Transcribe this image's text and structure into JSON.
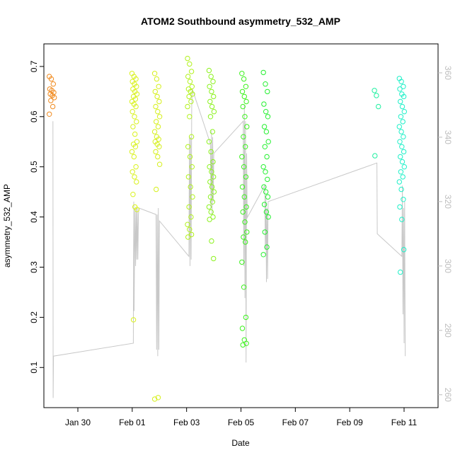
{
  "chart_data": {
    "type": "scatter",
    "title": "ATOM2 Southbound asymmetry_532_AMP",
    "xlabel": "Date",
    "ylabel": "asymmetry_532_AMP",
    "xlim": [
      "2020-01-28T18:00",
      "2020-02-12T06:00"
    ],
    "ylim": [
      0.02,
      0.745
    ],
    "y2lim": [
      256,
      369
    ],
    "x_ticks": [
      {
        "date": "2020-01-30",
        "label": "Jan 30"
      },
      {
        "date": "2020-02-01",
        "label": "Feb 01"
      },
      {
        "date": "2020-02-03",
        "label": "Feb 03"
      },
      {
        "date": "2020-02-05",
        "label": "Feb 05"
      },
      {
        "date": "2020-02-07",
        "label": "Feb 07"
      },
      {
        "date": "2020-02-09",
        "label": "Feb 09"
      },
      {
        "date": "2020-02-11",
        "label": "Feb 11"
      }
    ],
    "y_ticks": [
      0.1,
      0.2,
      0.3,
      0.4,
      0.5,
      0.6,
      0.7
    ],
    "y2_ticks": [
      260,
      280,
      300,
      320,
      340,
      360
    ],
    "grid": false,
    "series": [
      {
        "type": "scatter",
        "marker": "open-circle",
        "color_by_time": true,
        "groups": [
          {
            "center": "2020-01-29T01:00",
            "color": "#f08a1e",
            "values": [
              0.68,
              0.675,
              0.665,
              0.655,
              0.652,
              0.648,
              0.645,
              0.642,
              0.638,
              0.632,
              0.62,
              0.605
            ]
          },
          {
            "center": "2020-02-01T02:00",
            "color": "#d9f21e",
            "values": [
              0.686,
              0.68,
              0.675,
              0.67,
              0.665,
              0.66,
              0.655,
              0.65,
              0.645,
              0.64,
              0.635,
              0.63,
              0.625,
              0.62,
              0.61,
              0.6,
              0.59,
              0.58,
              0.565,
              0.55,
              0.545,
              0.54,
              0.53,
              0.52,
              0.5,
              0.49,
              0.48,
              0.47,
              0.445,
              0.42,
              0.415,
              0.195
            ]
          },
          {
            "center": "2020-02-01T22:00",
            "color": "#d6f01c",
            "values": [
              0.686,
              0.675,
              0.66,
              0.65,
              0.64,
              0.63,
              0.62,
              0.61,
              0.6,
              0.59,
              0.58,
              0.57,
              0.56,
              0.555,
              0.55,
              0.545,
              0.54,
              0.53,
              0.52,
              0.505,
              0.455,
              0.04,
              0.037
            ]
          },
          {
            "center": "2020-02-03T03:00",
            "color": "#b2f21e",
            "values": [
              0.716,
              0.705,
              0.69,
              0.68,
              0.67,
              0.66,
              0.655,
              0.65,
              0.645,
              0.64,
              0.63,
              0.62,
              0.6,
              0.56,
              0.54,
              0.52,
              0.5,
              0.48,
              0.46,
              0.44,
              0.42,
              0.4,
              0.385,
              0.375,
              0.365,
              0.36
            ]
          },
          {
            "center": "2020-02-03T22:00",
            "color": "#8cf21e",
            "values": [
              0.692,
              0.68,
              0.67,
              0.66,
              0.65,
              0.64,
              0.63,
              0.62,
              0.61,
              0.6,
              0.57,
              0.55,
              0.53,
              0.51,
              0.5,
              0.49,
              0.48,
              0.47,
              0.46,
              0.45,
              0.44,
              0.43,
              0.42,
              0.41,
              0.4,
              0.395,
              0.352,
              0.317
            ]
          },
          {
            "center": "2020-02-05T03:00",
            "color": "#3df21e",
            "values": [
              0.686,
              0.675,
              0.66,
              0.65,
              0.64,
              0.63,
              0.62,
              0.6,
              0.58,
              0.56,
              0.54,
              0.52,
              0.5,
              0.48,
              0.46,
              0.44,
              0.42,
              0.41,
              0.39,
              0.37,
              0.36,
              0.35,
              0.31,
              0.26,
              0.2,
              0.178,
              0.155,
              0.148,
              0.145
            ]
          },
          {
            "center": "2020-02-05T22:00",
            "color": "#25f030",
            "values": [
              0.688,
              0.665,
              0.65,
              0.625,
              0.61,
              0.6,
              0.58,
              0.57,
              0.55,
              0.54,
              0.52,
              0.5,
              0.49,
              0.475,
              0.46,
              0.45,
              0.44,
              0.425,
              0.41,
              0.4,
              0.37,
              0.34,
              0.325
            ]
          },
          {
            "center": "2020-02-10T00:00",
            "color": "#1ef0a0",
            "values": [
              0.652,
              0.642,
              0.62,
              0.522
            ]
          },
          {
            "center": "2020-02-10T22:00",
            "color": "#1ef0c8",
            "values": [
              0.676,
              0.67,
              0.66,
              0.655,
              0.645,
              0.64,
              0.63,
              0.62,
              0.61,
              0.6,
              0.59,
              0.58,
              0.57,
              0.56,
              0.55,
              0.54,
              0.53,
              0.52,
              0.51,
              0.5,
              0.49,
              0.48,
              0.47,
              0.455,
              0.435,
              0.42,
              0.395,
              0.335,
              0.29
            ]
          }
        ]
      },
      {
        "type": "line",
        "axis": "right",
        "color": "#c8c8c8",
        "points": [
          [
            "2020-01-29T02:00",
            345
          ],
          [
            "2020-01-29T02:10",
            259
          ],
          [
            "2020-01-29T02:30",
            272
          ],
          [
            "2020-02-01T01:00",
            276
          ],
          [
            "2020-02-01T01:20",
            320
          ],
          [
            "2020-02-01T01:40",
            286
          ],
          [
            "2020-02-01T02:20",
            318
          ],
          [
            "2020-02-01T03:00",
            300
          ],
          [
            "2020-02-01T03:30",
            318
          ],
          [
            "2020-02-01T04:00",
            302
          ],
          [
            "2020-02-01T04:30",
            318
          ],
          [
            "2020-02-01T05:00",
            302
          ],
          [
            "2020-02-01T05:30",
            316
          ],
          [
            "2020-02-01T06:00",
            318
          ],
          [
            "2020-02-01T21:00",
            316
          ],
          [
            "2020-02-01T21:30",
            274
          ],
          [
            "2020-02-01T22:00",
            316
          ],
          [
            "2020-02-01T22:30",
            272
          ],
          [
            "2020-02-01T23:00",
            318
          ],
          [
            "2020-02-01T23:30",
            274
          ],
          [
            "2020-02-02T00:00",
            314
          ],
          [
            "2020-02-03T02:00",
            303
          ],
          [
            "2020-02-03T02:30",
            340
          ],
          [
            "2020-02-03T03:00",
            300
          ],
          [
            "2020-02-03T03:30",
            340
          ],
          [
            "2020-02-03T04:00",
            302
          ],
          [
            "2020-02-03T04:30",
            350
          ],
          [
            "2020-02-03T05:00",
            355
          ],
          [
            "2020-02-03T21:00",
            338
          ],
          [
            "2020-02-03T21:30",
            318
          ],
          [
            "2020-02-03T22:00",
            342
          ],
          [
            "2020-02-03T22:30",
            316
          ],
          [
            "2020-02-03T23:00",
            340
          ],
          [
            "2020-02-03T23:30",
            320
          ],
          [
            "2020-02-04T00:00",
            335
          ],
          [
            "2020-02-05T02:00",
            345
          ],
          [
            "2020-02-05T02:30",
            300
          ],
          [
            "2020-02-05T03:00",
            350
          ],
          [
            "2020-02-05T03:30",
            290
          ],
          [
            "2020-02-05T04:00",
            345
          ],
          [
            "2020-02-05T04:30",
            270
          ],
          [
            "2020-02-05T05:00",
            335
          ],
          [
            "2020-02-05T05:30",
            315
          ],
          [
            "2020-02-05T21:00",
            325
          ],
          [
            "2020-02-05T21:30",
            305
          ],
          [
            "2020-02-05T22:00",
            322
          ],
          [
            "2020-02-05T22:30",
            295
          ],
          [
            "2020-02-05T23:00",
            318
          ],
          [
            "2020-02-05T23:30",
            296
          ],
          [
            "2020-02-06T00:00",
            320
          ],
          [
            "2020-02-10T00:00",
            332
          ],
          [
            "2020-02-10T00:20",
            310
          ],
          [
            "2020-02-10T22:00",
            303
          ],
          [
            "2020-02-10T22:30",
            325
          ],
          [
            "2020-02-10T23:00",
            285
          ],
          [
            "2020-02-10T23:30",
            318
          ],
          [
            "2020-02-11T00:00",
            276
          ],
          [
            "2020-02-11T00:30",
            320
          ],
          [
            "2020-02-11T01:00",
            272
          ]
        ]
      }
    ]
  }
}
